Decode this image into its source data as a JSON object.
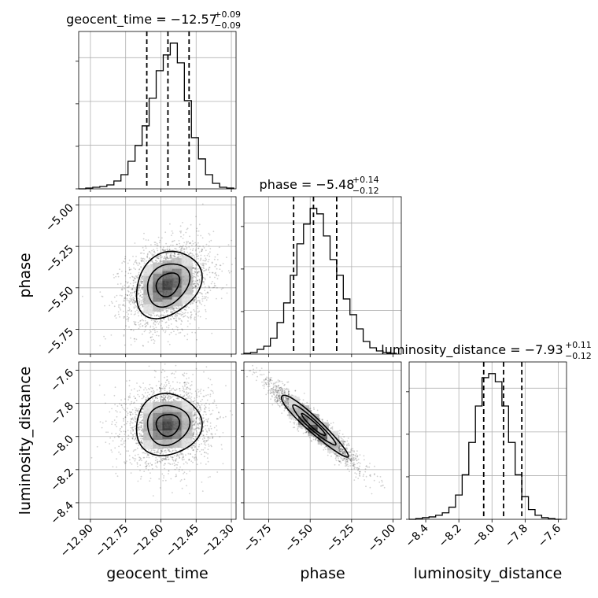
{
  "chart_data": {
    "type": "corner",
    "parameters": [
      {
        "name": "geocent_time",
        "median": -12.57,
        "plus": "+0.09",
        "minus": "−0.09",
        "title": "geocent_time = −12.57",
        "lim": [
          -12.95,
          -12.28
        ],
        "ticks": [
          -12.9,
          -12.75,
          -12.6,
          -12.45,
          -12.3
        ],
        "tick_labels": [
          "−12.90",
          "−12.75",
          "−12.60",
          "−12.45",
          "−12.30"
        ],
        "quantiles": [
          -12.66,
          -12.57,
          -12.48
        ]
      },
      {
        "name": "phase",
        "median": -5.48,
        "plus": "+0.14",
        "minus": "−0.12",
        "title": "phase = −5.48",
        "lim": [
          -5.9,
          -4.95
        ],
        "ticks": [
          -5.75,
          -5.5,
          -5.25,
          -5.0
        ],
        "tick_labels": [
          "−5.75",
          "−5.50",
          "−5.25",
          "−5.00"
        ],
        "quantiles": [
          -5.6,
          -5.48,
          -5.34
        ]
      },
      {
        "name": "luminosity_distance",
        "median": -7.93,
        "plus": "+0.11",
        "minus": "−0.12",
        "title": "luminosity_distance = −7.93",
        "lim": [
          -8.5,
          -7.55
        ],
        "ticks": [
          -8.4,
          -8.2,
          -8.0,
          -7.8,
          -7.6
        ],
        "tick_labels": [
          "−8.4",
          "−8.2",
          "−8.0",
          "−7.8",
          "−7.6"
        ],
        "y_ticks": [
          -8.4,
          -8.2,
          -8.0,
          -7.8,
          -7.6
        ],
        "y_tick_labels": [
          "−8.4",
          "−8.2",
          "−8.0",
          "−7.8",
          "−7.6"
        ],
        "quantiles": [
          -8.05,
          -7.93,
          -7.82
        ]
      }
    ],
    "axis_labels": {
      "x": [
        "geocent_time",
        "phase",
        "luminosity_distance"
      ],
      "y": [
        "phase",
        "luminosity_distance"
      ]
    },
    "histograms": [
      {
        "param": "geocent_time",
        "bin_edges": [
          -12.95,
          -12.92,
          -12.89,
          -12.86,
          -12.83,
          -12.8,
          -12.77,
          -12.74,
          -12.71,
          -12.68,
          -12.65,
          -12.62,
          -12.59,
          -12.56,
          -12.53,
          -12.5,
          -12.47,
          -12.44,
          -12.41,
          -12.38,
          -12.35,
          -12.32,
          -12.29
        ],
        "counts": [
          0,
          1,
          2,
          3,
          5,
          10,
          18,
          35,
          55,
          80,
          115,
          150,
          170,
          185,
          160,
          112,
          65,
          38,
          18,
          7,
          2,
          1
        ]
      },
      {
        "param": "phase",
        "bin_edges": [
          -5.9,
          -5.86,
          -5.82,
          -5.78,
          -5.74,
          -5.7,
          -5.66,
          -5.62,
          -5.58,
          -5.54,
          -5.5,
          -5.46,
          -5.42,
          -5.38,
          -5.34,
          -5.3,
          -5.26,
          -5.22,
          -5.18,
          -5.14,
          -5.1,
          -5.06,
          -5.02,
          -4.98
        ],
        "counts": [
          1,
          2,
          6,
          10,
          20,
          40,
          65,
          100,
          140,
          165,
          185,
          178,
          150,
          120,
          100,
          70,
          50,
          32,
          16,
          8,
          4,
          2,
          1
        ]
      },
      {
        "param": "luminosity_distance",
        "bin_edges": [
          -8.5,
          -8.46,
          -8.42,
          -8.38,
          -8.34,
          -8.3,
          -8.26,
          -8.22,
          -8.18,
          -8.14,
          -8.1,
          -8.06,
          -8.02,
          -7.98,
          -7.94,
          -7.9,
          -7.86,
          -7.82,
          -7.78,
          -7.74,
          -7.7,
          -7.66,
          -7.62,
          -7.58
        ],
        "counts": [
          0,
          1,
          2,
          3,
          5,
          8,
          15,
          30,
          55,
          95,
          140,
          175,
          180,
          170,
          140,
          95,
          55,
          28,
          12,
          5,
          2,
          1,
          0
        ]
      }
    ],
    "scatter_2d": [
      {
        "x": "geocent_time",
        "y": "phase",
        "mean": [
          -12.57,
          -5.48
        ],
        "sd": [
          0.09,
          0.13
        ],
        "corr": 0.25
      },
      {
        "x": "geocent_time",
        "y": "luminosity_distance",
        "mean": [
          -12.57,
          -7.93
        ],
        "sd": [
          0.09,
          0.12
        ],
        "corr": 0.05
      },
      {
        "x": "phase",
        "y": "luminosity_distance",
        "mean": [
          -5.48,
          -7.93
        ],
        "sd": [
          0.13,
          0.12
        ],
        "corr": -0.95
      }
    ],
    "grid": true
  }
}
